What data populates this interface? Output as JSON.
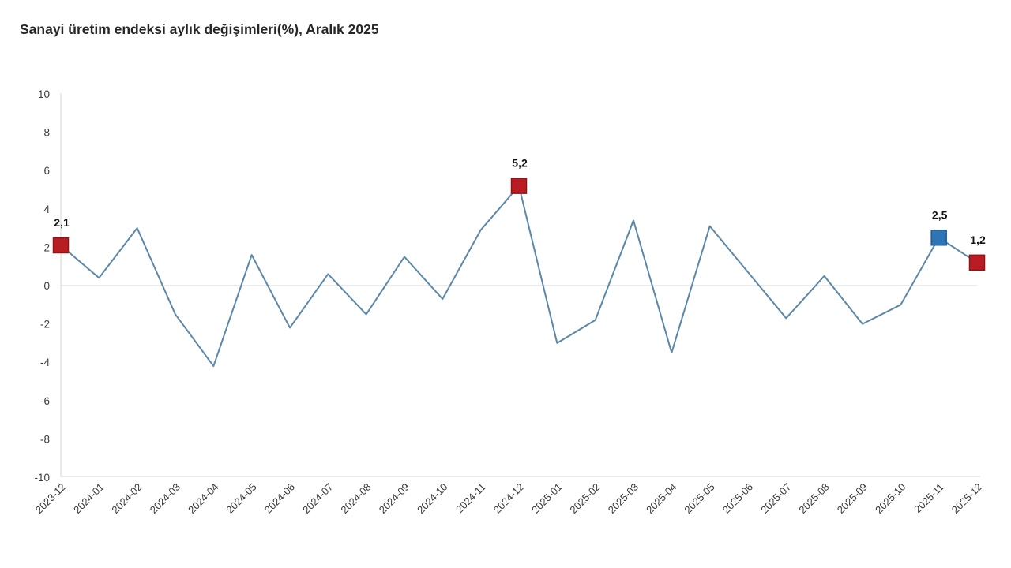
{
  "title": "Sanayi üretim endeksi aylık değişimleri(%), Aralık 2025",
  "chart_data": {
    "type": "line",
    "title": "Sanayi üretim endeksi aylık değişimleri(%), Aralık 2025",
    "xlabel": "",
    "ylabel": "",
    "ylim": [
      -10,
      10
    ],
    "yticks": [
      10,
      8,
      6,
      4,
      2,
      0,
      -2,
      -4,
      -6,
      -8,
      -10
    ],
    "grid": "zero-line-only",
    "legend": "none",
    "line_color": "#5b87a9",
    "axis_color": "#d4d4d4",
    "zero_line_color": "#d9d9d9",
    "categories": [
      "2023-12",
      "2024-01",
      "2024-02",
      "2024-03",
      "2024-04",
      "2024-05",
      "2024-06",
      "2024-07",
      "2024-08",
      "2024-09",
      "2024-10",
      "2024-11",
      "2024-12",
      "2025-01",
      "2025-02",
      "2025-03",
      "2025-04",
      "2025-05",
      "2025-06",
      "2025-07",
      "2025-08",
      "2025-09",
      "2025-10",
      "2025-11",
      "2025-12"
    ],
    "values": [
      2.1,
      0.4,
      3.0,
      -1.5,
      -4.2,
      1.6,
      -2.2,
      0.6,
      -1.5,
      1.5,
      -0.7,
      2.9,
      5.2,
      -3.0,
      -1.8,
      3.4,
      -3.5,
      3.1,
      0.7,
      -1.7,
      0.5,
      -2.0,
      -1.0,
      2.5,
      1.2
    ],
    "highlighted_points": [
      {
        "category": "2023-12",
        "value": 2.1,
        "label": "2,1",
        "marker_color": "#b91c22",
        "border_color": "#8f1418",
        "marker_name": "marker-2023-12"
      },
      {
        "category": "2024-12",
        "value": 5.2,
        "label": "5,2",
        "marker_color": "#b91c22",
        "border_color": "#8f1418",
        "marker_name": "marker-2024-12"
      },
      {
        "category": "2025-11",
        "value": 2.5,
        "label": "2,5",
        "marker_color": "#2e75b6",
        "border_color": "#1f5a94",
        "marker_name": "marker-2025-11"
      },
      {
        "category": "2025-12",
        "value": 1.2,
        "label": "1,2",
        "marker_color": "#b91c22",
        "border_color": "#8f1418",
        "marker_name": "marker-2025-12"
      }
    ]
  }
}
